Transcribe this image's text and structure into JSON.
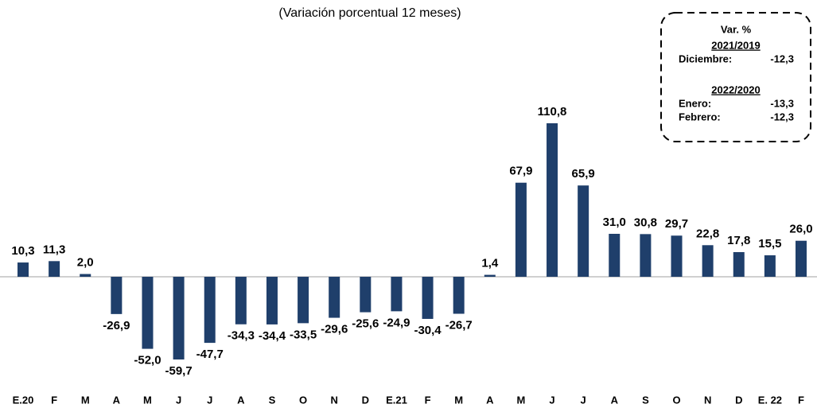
{
  "chart_data": {
    "type": "bar",
    "subtitle": "(Variación porcentual 12 meses)",
    "categories": [
      "E.20",
      "F",
      "M",
      "A",
      "M",
      "J",
      "J",
      "A",
      "S",
      "O",
      "N",
      "D",
      "E.21",
      "F",
      "M",
      "A",
      "M",
      "J",
      "J",
      "A",
      "S",
      "O",
      "N",
      "D",
      "E. 22",
      "F"
    ],
    "values": [
      10.3,
      11.3,
      2.0,
      -26.9,
      -52.0,
      -59.7,
      -47.7,
      -34.3,
      -34.4,
      -33.5,
      -29.6,
      -25.6,
      -24.9,
      -30.4,
      -26.7,
      1.4,
      67.9,
      110.8,
      65.9,
      31.0,
      30.8,
      29.7,
      22.8,
      17.8,
      15.5,
      26.0
    ],
    "value_labels": [
      "10,3",
      "11,3",
      "2,0",
      "-26,9",
      "-52,0",
      "-59,7",
      "-47,7",
      "-34,3",
      "-34,4",
      "-33,5",
      "-29,6",
      "-25,6",
      "-24,9",
      "-30,4",
      "-26,7",
      "1,4",
      "67,9",
      "110,8",
      "65,9",
      "31,0",
      "30,8",
      "29,7",
      "22,8",
      "17,8",
      "15,5",
      "26,0"
    ],
    "color": "#1f3f6b",
    "annotation": {
      "title": "Var. %",
      "sections": [
        {
          "heading": "2021/2019",
          "rows": [
            {
              "label": "Diciembre:",
              "value": "-12,3"
            }
          ]
        },
        {
          "heading": "2022/2020",
          "rows": [
            {
              "label": "Enero:",
              "value": "-13,3"
            },
            {
              "label": "Febrero:",
              "value": "-12,3"
            }
          ]
        }
      ]
    }
  }
}
